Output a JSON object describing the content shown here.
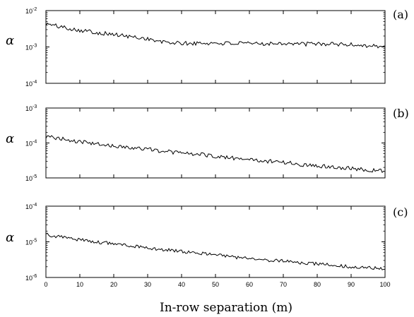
{
  "chart_data": {
    "type": "line",
    "xlabel": "In-row separation (m)",
    "xlim": [
      0,
      100
    ],
    "x_ticks": [
      "0",
      "10",
      "20",
      "30",
      "40",
      "50",
      "60",
      "70",
      "80",
      "90",
      "100"
    ],
    "x_tick_values": [
      0,
      10,
      20,
      30,
      40,
      50,
      60,
      70,
      80,
      90,
      100
    ],
    "panels": [
      {
        "label": "(a)",
        "ylabel": "α",
        "yscale": "log",
        "ylim": [
          0.0001,
          0.01
        ],
        "y_ticks": [
          {
            "base": "10",
            "exp": "-4",
            "value": 0.0001
          },
          {
            "base": "10",
            "exp": "-3",
            "value": 0.001
          },
          {
            "base": "10",
            "exp": "-2",
            "value": 0.01
          }
        ],
        "series": {
          "x": [
            0,
            5,
            10,
            15,
            20,
            25,
            30,
            33,
            35,
            40,
            45,
            50,
            55,
            60,
            65,
            70,
            75,
            80,
            85,
            90,
            95,
            100
          ],
          "values": [
            0.0043,
            0.0035,
            0.0029,
            0.0025,
            0.0022,
            0.0019,
            0.0017,
            0.0014,
            0.00135,
            0.00125,
            0.00125,
            0.00128,
            0.00125,
            0.00122,
            0.00125,
            0.00128,
            0.0012,
            0.00122,
            0.0012,
            0.00115,
            0.0011,
            0.001
          ],
          "noise": 0.06
        }
      },
      {
        "label": "(b)",
        "ylabel": "α",
        "yscale": "log",
        "ylim": [
          1e-05,
          0.001
        ],
        "y_ticks": [
          {
            "base": "10",
            "exp": "-5",
            "value": 1e-05
          },
          {
            "base": "10",
            "exp": "-4",
            "value": 0.0001
          },
          {
            "base": "10",
            "exp": "-3",
            "value": 0.001
          }
        ],
        "series": {
          "x": [
            0,
            5,
            10,
            15,
            20,
            25,
            30,
            35,
            40,
            45,
            50,
            55,
            60,
            65,
            70,
            75,
            80,
            85,
            90,
            95,
            100
          ],
          "values": [
            0.00015,
            0.00013,
            0.000108,
            9.25e-05,
            8.1e-05,
            7.4e-05,
            6.7e-05,
            5.75e-05,
            5.2e-05,
            4.7e-05,
            4.2e-05,
            3.7e-05,
            3.35e-05,
            3.05e-05,
            2.8e-05,
            2.45e-05,
            2.25e-05,
            2.05e-05,
            1.9e-05,
            1.7e-05,
            1.55e-05
          ],
          "noise": 0.06
        }
      },
      {
        "label": "(c)",
        "ylabel": "α",
        "yscale": "log",
        "ylim": [
          1e-06,
          0.0001
        ],
        "y_ticks": [
          {
            "base": "10",
            "exp": "-6",
            "value": 1e-06
          },
          {
            "base": "10",
            "exp": "-5",
            "value": 1e-05
          },
          {
            "base": "10",
            "exp": "-4",
            "value": 0.0001
          }
        ],
        "series": {
          "x": [
            0,
            5,
            10,
            15,
            20,
            25,
            30,
            35,
            40,
            45,
            50,
            55,
            60,
            65,
            70,
            75,
            80,
            85,
            90,
            95,
            100
          ],
          "values": [
            1.6e-05,
            1.35e-05,
            1.15e-05,
            1e-05,
            8.8e-06,
            7.8e-06,
            6.8e-06,
            6e-06,
            5.3e-06,
            4.8e-06,
            4.4e-06,
            3.8e-06,
            3.4e-06,
            3.1e-06,
            2.9e-06,
            2.6e-06,
            2.4e-06,
            2.2e-06,
            2e-06,
            1.9e-06,
            1.7e-06
          ],
          "noise": 0.05
        }
      }
    ]
  }
}
